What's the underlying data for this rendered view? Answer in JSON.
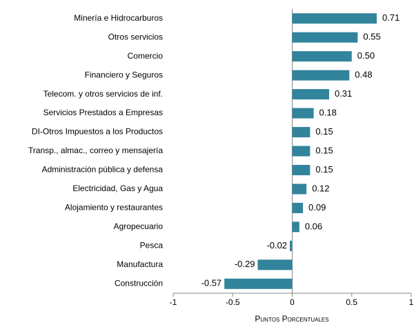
{
  "chart_data": {
    "type": "bar",
    "orientation": "horizontal",
    "categories": [
      "Minería e Hidrocarburos",
      "Otros servicios",
      "Comercio",
      "Financiero y Seguros",
      "Telecom. y otros servicios de inf.",
      "Servicios Prestados a Empresas",
      "DI-Otros Impuestos a los Productos",
      "Transp., almac., correo y mensajería",
      "Administración pública y defensa",
      "Electricidad, Gas y Agua",
      "Alojamiento y restaurantes",
      "Agropecuario",
      "Pesca",
      "Manufactura",
      "Construcción"
    ],
    "values": [
      0.71,
      0.55,
      0.5,
      0.48,
      0.31,
      0.18,
      0.15,
      0.15,
      0.15,
      0.12,
      0.09,
      0.06,
      -0.02,
      -0.29,
      -0.57
    ],
    "value_labels": [
      "0.71",
      "0.55",
      "0.50",
      "0.48",
      "0.31",
      "0.18",
      "0.15",
      "0.15",
      "0.15",
      "0.12",
      "0.09",
      "0.06",
      "-0.02",
      "-0.29",
      "-0.57"
    ],
    "color": "#31849b",
    "xlabel": "Puntos Porcentuales",
    "xlim": [
      -1,
      1
    ],
    "xticks": [
      -1,
      -0.5,
      0,
      0.5,
      1
    ],
    "grid": false
  }
}
